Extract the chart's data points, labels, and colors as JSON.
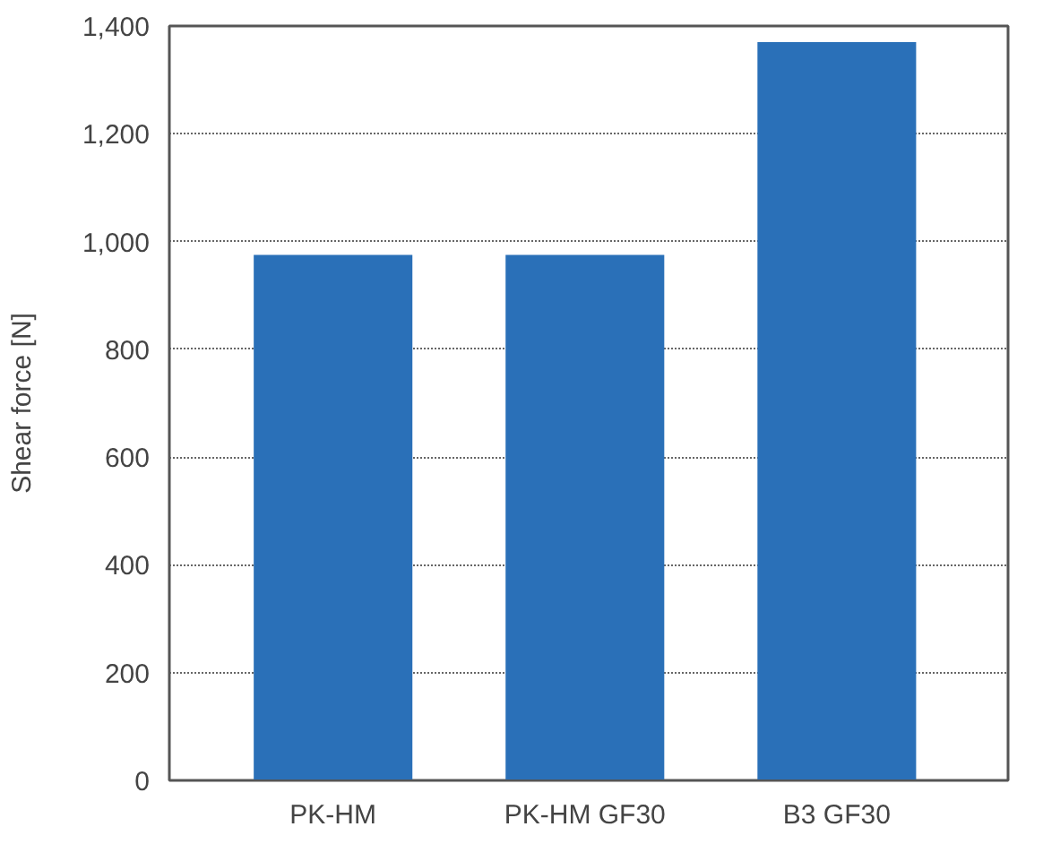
{
  "chart_data": {
    "type": "bar",
    "ylabel": "Shear force [N]",
    "categories": [
      "PK-HM",
      "PK-HM GF30",
      "B3 GF30"
    ],
    "values": [
      975,
      975,
      1370
    ],
    "color": "#2a70b8",
    "ylim": [
      0,
      1400
    ],
    "yticks": [
      {
        "value": 0,
        "label": "0"
      },
      {
        "value": 200,
        "label": "200"
      },
      {
        "value": 400,
        "label": "400"
      },
      {
        "value": 600,
        "label": "600"
      },
      {
        "value": 800,
        "label": "800"
      },
      {
        "value": 1000,
        "label": "1,000"
      },
      {
        "value": 1200,
        "label": "1,200"
      },
      {
        "value": 1400,
        "label": "1,400"
      }
    ],
    "grid": "y"
  }
}
